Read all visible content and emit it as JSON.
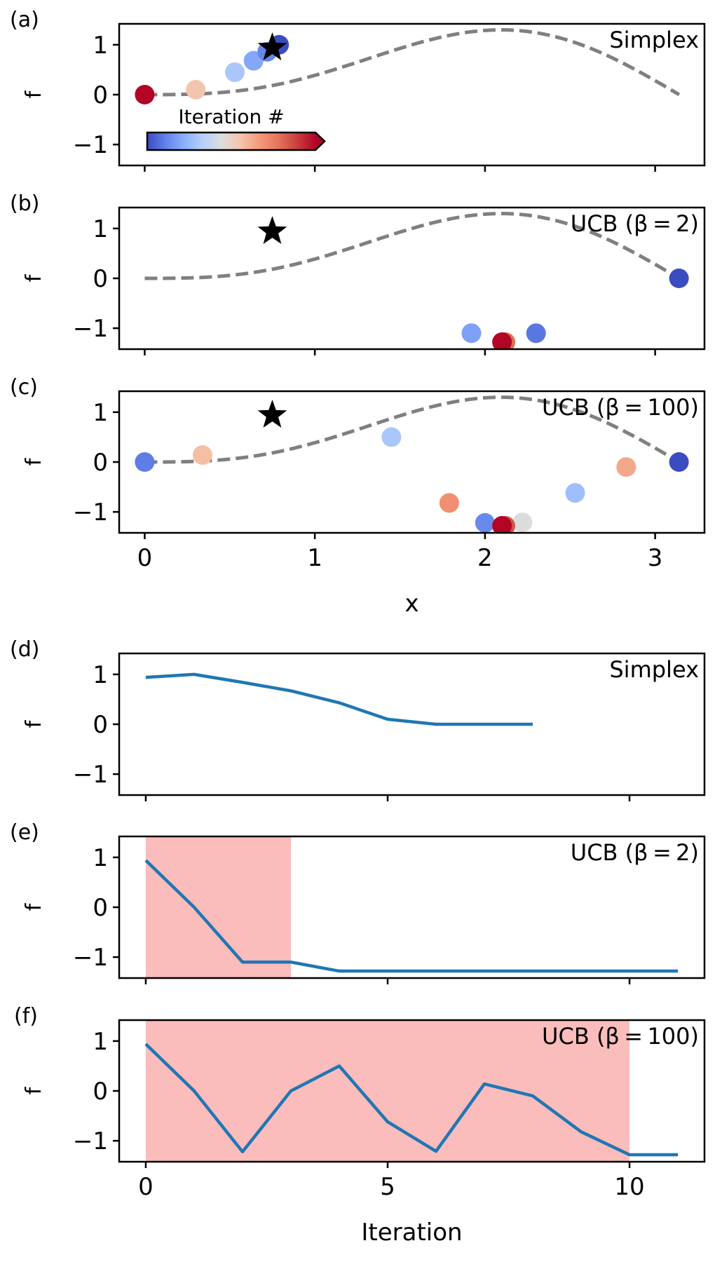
{
  "colors": {
    "curve": "#808080",
    "line": "#1f77b4",
    "shade": "#fbbcbc",
    "star": "#000000",
    "axes": "#000000",
    "cmap": [
      "#3b4cc0",
      "#6282ea",
      "#8db0fe",
      "#b8d0f9",
      "#dddddd",
      "#f5c4ac",
      "#f49a7b",
      "#e7745b",
      "#c9413f",
      "#b40426"
    ]
  },
  "chart_data": [
    {
      "panel": "(a)",
      "type": "scatter",
      "method": "Simplex",
      "ylabel": "f",
      "xlim": [
        -0.15,
        3.29
      ],
      "ylim": [
        -1.42,
        1.42
      ],
      "yticks": [
        -1,
        0,
        1
      ],
      "ytick_labels": [
        "−1",
        "0",
        "1"
      ],
      "xticks": [
        0,
        1,
        2,
        3
      ],
      "xtick_labels": [],
      "curve": "f(x) = sin(x) - sin(2x)/2 sampled on [0, π], dashed grey",
      "star": [
        0.75,
        0.94
      ],
      "points": [
        {
          "x": 0.0,
          "y": 0.0,
          "t": 1.0
        },
        {
          "x": 0.3,
          "y": 0.1,
          "t": 0.55
        },
        {
          "x": 0.53,
          "y": 0.45,
          "t": 0.3
        },
        {
          "x": 0.64,
          "y": 0.68,
          "t": 0.2
        },
        {
          "x": 0.72,
          "y": 0.86,
          "t": 0.12
        },
        {
          "x": 0.79,
          "y": 1.0,
          "t": 0.0
        }
      ],
      "colorbar": {
        "title": "Iteration #"
      }
    },
    {
      "panel": "(b)",
      "type": "scatter",
      "method": "UCB (β = 2)",
      "ylabel": "f",
      "xlim": [
        -0.15,
        3.29
      ],
      "ylim": [
        -1.42,
        1.42
      ],
      "yticks": [
        -1,
        0,
        1
      ],
      "ytick_labels": [
        "−1",
        "0",
        "1"
      ],
      "xticks": [
        0,
        1,
        2,
        3
      ],
      "xtick_labels": [],
      "star": [
        0.75,
        0.94
      ],
      "points": [
        {
          "x": 3.14,
          "y": 0.0,
          "t": 0.0
        },
        {
          "x": 2.3,
          "y": -1.1,
          "t": 0.09
        },
        {
          "x": 1.92,
          "y": -1.1,
          "t": 0.18
        },
        {
          "x": 2.12,
          "y": -1.28,
          "t": 0.8
        },
        {
          "x": 2.1,
          "y": -1.28,
          "t": 1.0
        }
      ]
    },
    {
      "panel": "(c)",
      "type": "scatter",
      "method": "UCB (β = 100)",
      "ylabel": "f",
      "xlabel": "x",
      "xlim": [
        -0.15,
        3.29
      ],
      "ylim": [
        -1.42,
        1.42
      ],
      "yticks": [
        -1,
        0,
        1
      ],
      "ytick_labels": [
        "−1",
        "0",
        "1"
      ],
      "xticks": [
        0,
        1,
        2,
        3
      ],
      "xtick_labels": [
        "0",
        "1",
        "2",
        "3"
      ],
      "star": [
        0.75,
        0.94
      ],
      "points": [
        {
          "x": 3.14,
          "y": 0.0,
          "t": 0.0
        },
        {
          "x": 0.0,
          "y": 0.0,
          "t": 0.1
        },
        {
          "x": 2.0,
          "y": -1.22,
          "t": 0.13
        },
        {
          "x": 2.53,
          "y": -0.62,
          "t": 0.27
        },
        {
          "x": 1.45,
          "y": 0.5,
          "t": 0.3
        },
        {
          "x": 2.22,
          "y": -1.21,
          "t": 0.44
        },
        {
          "x": 0.34,
          "y": 0.14,
          "t": 0.57
        },
        {
          "x": 2.83,
          "y": -0.1,
          "t": 0.63
        },
        {
          "x": 1.79,
          "y": -0.82,
          "t": 0.7
        },
        {
          "x": 2.12,
          "y": -1.28,
          "t": 0.85
        },
        {
          "x": 2.1,
          "y": -1.28,
          "t": 1.0
        }
      ]
    },
    {
      "panel": "(d)",
      "type": "line",
      "method": "Simplex",
      "ylabel": "f",
      "xlim": [
        -0.55,
        11.55
      ],
      "ylim": [
        -1.42,
        1.42
      ],
      "yticks": [
        -1,
        0,
        1
      ],
      "ytick_labels": [
        "−1",
        "0",
        "1"
      ],
      "xticks": [
        0,
        5,
        10
      ],
      "xtick_labels": [],
      "x": [
        0,
        1,
        2,
        3,
        4,
        5,
        6,
        7,
        8
      ],
      "y": [
        0.94,
        1.0,
        0.84,
        0.67,
        0.43,
        0.1,
        0.0,
        0.0,
        0.0
      ],
      "shade": null
    },
    {
      "panel": "(e)",
      "type": "line",
      "method": "UCB (β = 2)",
      "ylabel": "f",
      "xlim": [
        -0.55,
        11.55
      ],
      "ylim": [
        -1.42,
        1.42
      ],
      "yticks": [
        -1,
        0,
        1
      ],
      "ytick_labels": [
        "−1",
        "0",
        "1"
      ],
      "xticks": [
        0,
        5,
        10
      ],
      "xtick_labels": [],
      "x": [
        0,
        1,
        2,
        3,
        4,
        5,
        6,
        7,
        8,
        9,
        10,
        11
      ],
      "y": [
        0.94,
        0.0,
        -1.1,
        -1.1,
        -1.28,
        -1.28,
        -1.28,
        -1.28,
        -1.28,
        -1.28,
        -1.28,
        -1.28
      ],
      "shade": [
        0,
        3
      ]
    },
    {
      "panel": "(f)",
      "type": "line",
      "method": "UCB (β = 100)",
      "ylabel": "f",
      "xlabel": "Iteration",
      "xlim": [
        -0.55,
        11.55
      ],
      "ylim": [
        -1.42,
        1.42
      ],
      "yticks": [
        -1,
        0,
        1
      ],
      "ytick_labels": [
        "−1",
        "0",
        "1"
      ],
      "xticks": [
        0,
        5,
        10
      ],
      "xtick_labels": [
        "0",
        "5",
        "10"
      ],
      "x": [
        0,
        1,
        2,
        3,
        4,
        5,
        6,
        7,
        8,
        9,
        10,
        11
      ],
      "y": [
        0.94,
        0.0,
        -1.22,
        0.0,
        0.5,
        -0.62,
        -1.21,
        0.14,
        -0.1,
        -0.82,
        -1.28,
        -1.28
      ],
      "shade": [
        0,
        10
      ]
    }
  ]
}
